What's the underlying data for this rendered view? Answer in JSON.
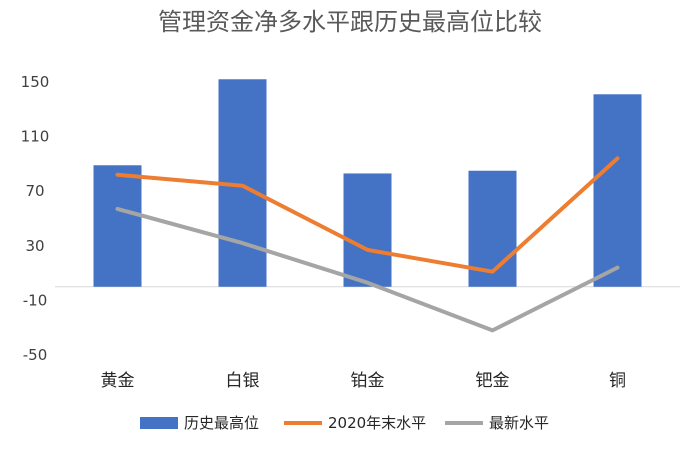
{
  "chart_data": {
    "type": "bar",
    "title": "管理资金净多水平跟历史最高位比较",
    "categories": [
      "黄金",
      "白银",
      "铂金",
      "钯金",
      "铜"
    ],
    "yticks": [
      150,
      110,
      70,
      30,
      -10,
      -50
    ],
    "ylim": [
      -50,
      150
    ],
    "grid": false,
    "legend_position": "bottom",
    "series": [
      {
        "name": "历史最高位",
        "kind": "bar",
        "color": "#4472C4",
        "values": [
          89,
          152,
          83,
          85,
          141
        ]
      },
      {
        "name": "2020年末水平",
        "kind": "line",
        "color": "#ED7D31",
        "values": [
          82,
          74,
          27,
          11,
          94
        ]
      },
      {
        "name": "最新水平",
        "kind": "line",
        "color": "#A5A5A5",
        "values": [
          57,
          32,
          3,
          -32,
          14
        ]
      }
    ]
  }
}
